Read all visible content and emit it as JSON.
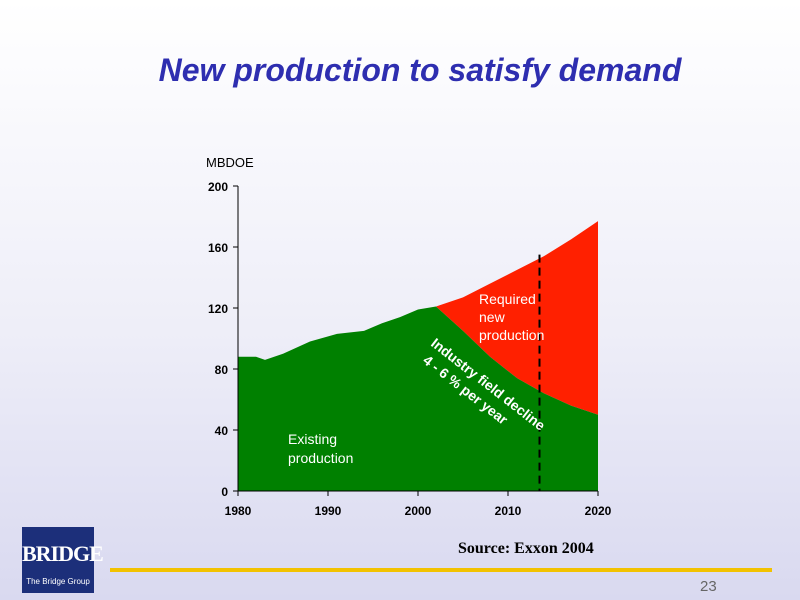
{
  "slide": {
    "title": "New production to satisfy demand",
    "source": "Source:  Exxon 2004",
    "page_number": "23",
    "logo_text": "BRIDGE",
    "logo_subtext": "The Bridge Group"
  },
  "colors": {
    "title": "#2e2eb0",
    "existing": "#008000",
    "required": "#ff2000",
    "footer_line": "#f2c200",
    "logo_bg": "#1c2f7a"
  },
  "chart_data": {
    "type": "area",
    "ylabel": "MBDOE",
    "xlim": [
      1980,
      2020
    ],
    "ylim": [
      0,
      200
    ],
    "x_ticks": [
      1980,
      1990,
      2000,
      2010,
      2020
    ],
    "y_ticks": [
      0,
      40,
      80,
      120,
      160,
      200
    ],
    "grid": false,
    "existing_production": {
      "x": [
        1980,
        1982,
        1983,
        1985,
        1988,
        1991,
        1994,
        1996,
        1998,
        2000,
        2002,
        2005,
        2008,
        2011,
        2014,
        2017,
        2020
      ],
      "y": [
        88,
        88,
        86,
        90,
        98,
        103,
        105,
        110,
        114,
        119,
        121,
        105,
        88,
        74,
        64,
        56,
        50
      ]
    },
    "total_demand": {
      "x": [
        2002,
        2005,
        2008,
        2011,
        2014,
        2017,
        2020
      ],
      "y": [
        121,
        127,
        136,
        145,
        154,
        165,
        177
      ]
    },
    "forecast_marker_x": 2013.5,
    "annotations": {
      "required": [
        "Required",
        "new",
        "production"
      ],
      "existing": [
        "Existing",
        "production"
      ],
      "decline": [
        "Industry field decline",
        "4 - 6 % per year"
      ]
    }
  }
}
